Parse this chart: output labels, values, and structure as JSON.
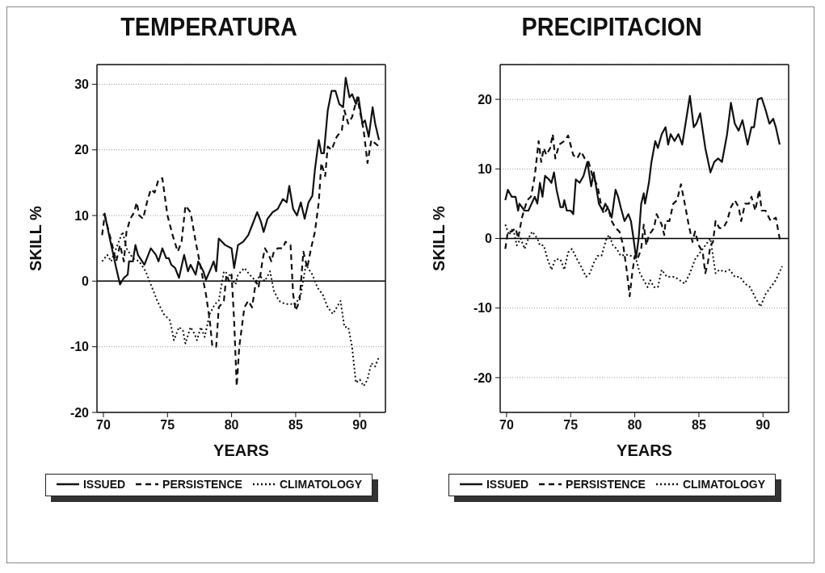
{
  "chart_data": [
    {
      "type": "line",
      "title": "TEMPERATURA",
      "xlabel": "YEARS",
      "ylabel": "SKILL %",
      "xlim": [
        69.5,
        92
      ],
      "xticks": [
        70,
        75,
        80,
        85,
        90
      ],
      "ylim": [
        -20,
        33
      ],
      "yticks": [
        -20,
        -10,
        0,
        10,
        20,
        30
      ],
      "grid": "y",
      "legend": "bottom",
      "ref_lines": [
        {
          "axis": "y",
          "value": 0,
          "color": "#000000",
          "line_style": "solid"
        }
      ],
      "series": [
        {
          "name": "ISSUED",
          "color": "#111111",
          "line_style": "solid",
          "x": [
            70.0,
            70.1,
            70.5,
            71.0,
            71.3,
            71.6,
            71.9,
            72.0,
            72.3,
            72.5,
            72.7,
            73.2,
            73.7,
            74.1,
            74.3,
            74.6,
            74.9,
            75.1,
            75.3,
            75.6,
            75.9,
            76.3,
            76.6,
            76.8,
            77.2,
            77.4,
            77.8,
            78.0,
            78.4,
            78.6,
            78.8,
            79.0,
            79.5,
            80.0,
            80.2,
            80.5,
            80.9,
            81.3,
            81.6,
            82.0,
            82.3,
            82.5,
            82.8,
            83.2,
            83.6,
            84.0,
            84.3,
            84.5,
            84.8,
            85.1,
            85.4,
            85.7,
            86.0,
            86.3,
            86.5,
            86.8,
            87.0,
            87.2,
            87.5,
            87.8,
            88.1,
            88.4,
            88.7,
            88.9,
            89.2,
            89.4,
            89.7,
            89.9,
            90.2,
            90.4,
            90.7,
            91.0,
            91.2,
            91.5
          ],
          "values": [
            10,
            10.3,
            6.5,
            2,
            -0.5,
            0.5,
            1,
            3,
            3,
            5.5,
            4,
            2.5,
            5,
            4,
            3,
            5,
            3.5,
            3.5,
            2.5,
            2,
            0.5,
            4,
            1.5,
            2.5,
            1,
            3,
            1.5,
            0.2,
            2,
            3,
            1.5,
            6.5,
            5.5,
            5,
            2,
            5.5,
            6,
            7,
            8.5,
            10.5,
            9,
            7.5,
            9.5,
            10.5,
            11,
            12.5,
            12,
            14.5,
            11,
            10,
            12,
            9.5,
            12,
            13,
            17,
            21.5,
            19.5,
            19.5,
            26,
            29,
            29,
            27,
            26.5,
            31,
            28,
            28.5,
            27,
            28,
            24,
            24.5,
            22,
            26.5,
            24,
            21.5
          ]
        },
        {
          "name": "PERSISTENCE",
          "color": "#111111",
          "line_style": "dashed",
          "x": [
            69.9,
            70.1,
            70.5,
            71.0,
            71.3,
            71.6,
            71.8,
            72.1,
            72.4,
            72.6,
            72.8,
            73.1,
            73.4,
            73.7,
            74.0,
            74.3,
            74.6,
            75.0,
            75.4,
            75.8,
            76.1,
            76.4,
            76.8,
            77.2,
            77.6,
            78.0,
            78.3,
            78.5,
            78.8,
            79.0,
            79.4,
            79.6,
            79.8,
            80.0,
            80.2,
            80.4,
            80.6,
            81.0,
            81.3,
            81.6,
            81.9,
            82.1,
            82.4,
            82.6,
            82.9,
            83.1,
            83.3,
            83.6,
            84.0,
            84.2,
            84.6,
            84.8,
            85.0,
            85.3,
            85.6,
            85.9,
            86.2,
            86.5,
            86.8,
            87.0,
            87.3,
            87.5,
            87.8,
            88.2,
            88.6,
            88.8,
            89.1,
            89.4,
            89.8,
            90.0,
            90.3,
            90.6,
            90.9,
            91.2,
            91.5
          ],
          "values": [
            7,
            10,
            7,
            3,
            5.5,
            3,
            7.5,
            9.5,
            10.5,
            12,
            10,
            9.5,
            12,
            14,
            13.5,
            15.5,
            15.7,
            10,
            7,
            4.5,
            6,
            11.5,
            10.5,
            6,
            2,
            -2,
            -6,
            -10,
            -10,
            -4,
            -3,
            1,
            0,
            1,
            -6,
            -16,
            -10,
            -4,
            -3,
            -4,
            0,
            -1,
            3,
            5,
            4,
            3,
            4.5,
            5,
            5,
            6,
            5.5,
            -2,
            -4.5,
            -3,
            4.5,
            2,
            5,
            7.5,
            12,
            18,
            16,
            20.5,
            20,
            22,
            23,
            26,
            24,
            25,
            28,
            26,
            23,
            18,
            21.5,
            21,
            20.5
          ]
        },
        {
          "name": "CLIMATOLOGY",
          "color": "#111111",
          "line_style": "dotted",
          "x": [
            69.9,
            70.3,
            70.6,
            71.0,
            71.5,
            71.8,
            72.3,
            72.8,
            73.3,
            73.8,
            74.2,
            74.7,
            75.2,
            75.5,
            75.9,
            76.2,
            76.4,
            76.8,
            77.1,
            77.3,
            77.6,
            77.9,
            78.3,
            78.7,
            79.0,
            79.4,
            79.8,
            80.3,
            80.5,
            81.0,
            81.4,
            81.9,
            82.2,
            82.6,
            83.0,
            83.3,
            83.7,
            84.2,
            84.6,
            85.0,
            85.4,
            85.8,
            86.3,
            86.7,
            87.1,
            87.5,
            87.9,
            88.2,
            88.5,
            88.8,
            89.1,
            89.4,
            89.7,
            90.0,
            90.3,
            90.6,
            90.9,
            91.2,
            91.5
          ],
          "values": [
            3,
            4,
            3,
            5,
            7.5,
            5,
            3.5,
            3,
            1.5,
            -1,
            -3,
            -5,
            -6,
            -9,
            -7,
            -7.5,
            -9.5,
            -7,
            -8,
            -9,
            -7,
            -8.5,
            -5,
            -3.5,
            -3,
            1.5,
            1,
            -0.5,
            1,
            2,
            1,
            0,
            0.8,
            0,
            1.5,
            -1.5,
            -3,
            -3.5,
            -3.5,
            -3.5,
            -2,
            2.5,
            1,
            -1,
            -2,
            -4,
            -5,
            -4,
            -3,
            -7,
            -7,
            -10,
            -15.5,
            -15,
            -16,
            -15,
            -12.5,
            -13,
            -11.5
          ]
        }
      ]
    },
    {
      "type": "line",
      "title": "PRECIPITACION",
      "xlabel": "YEARS",
      "ylabel": "SKILL %",
      "xlim": [
        69.5,
        92
      ],
      "xticks": [
        70,
        75,
        80,
        85,
        90
      ],
      "ylim": [
        -25,
        25
      ],
      "yticks": [
        -20,
        -10,
        0,
        10,
        20
      ],
      "grid": "y",
      "legend": "bottom",
      "ref_lines": [
        {
          "axis": "y",
          "value": 0,
          "color": "#000000",
          "line_style": "solid"
        }
      ],
      "series": [
        {
          "name": "ISSUED",
          "color": "#111111",
          "line_style": "solid",
          "x": [
            69.9,
            70.1,
            70.4,
            70.7,
            70.9,
            71.0,
            71.4,
            71.7,
            72.2,
            72.4,
            72.6,
            72.8,
            73.0,
            73.3,
            73.5,
            73.7,
            73.9,
            74.2,
            74.4,
            74.5,
            74.7,
            75.0,
            75.2,
            75.4,
            75.7,
            76.0,
            76.3,
            76.6,
            76.8,
            77.2,
            77.5,
            77.7,
            78.0,
            78.2,
            78.5,
            78.7,
            78.9,
            79.2,
            79.5,
            79.7,
            79.9,
            80.1,
            80.3,
            80.5,
            80.7,
            80.8,
            81.1,
            81.3,
            81.6,
            81.8,
            82.1,
            82.4,
            82.6,
            82.8,
            83.1,
            83.4,
            83.7,
            84.0,
            84.3,
            84.6,
            84.8,
            85.1,
            85.5,
            85.9,
            86.2,
            86.5,
            86.8,
            87.2,
            87.5,
            87.8,
            88.1,
            88.4,
            88.8,
            89.1,
            89.3,
            89.6,
            89.9,
            90.2,
            90.5,
            90.8,
            91.0,
            91.3
          ],
          "values": [
            5.5,
            7,
            6,
            6,
            4,
            5,
            4,
            4,
            6,
            5,
            8,
            6,
            9,
            8.5,
            8,
            9.5,
            7,
            4.5,
            4.5,
            5.5,
            4,
            4,
            3.5,
            8.5,
            8,
            9,
            11,
            7.5,
            9.5,
            5,
            4,
            5,
            4,
            3,
            7,
            6,
            4.5,
            2.5,
            3.5,
            2.5,
            0,
            -2.8,
            0,
            5,
            6.5,
            5,
            8,
            11,
            14,
            13,
            15,
            16,
            13.5,
            15,
            14,
            15,
            13.5,
            17,
            20.5,
            16,
            16.5,
            18,
            13,
            9.5,
            11,
            11.5,
            11,
            15,
            19.5,
            16.5,
            15.5,
            17,
            13.5,
            16,
            16,
            20,
            20.2,
            18.5,
            16.5,
            17.2,
            16,
            13.5
          ]
        },
        {
          "name": "PERSISTENCE",
          "color": "#111111",
          "line_style": "dashed",
          "x": [
            69.9,
            70.1,
            70.4,
            70.7,
            70.9,
            71.2,
            71.6,
            71.9,
            72.2,
            72.5,
            72.7,
            72.9,
            73.1,
            73.4,
            73.6,
            73.8,
            74.1,
            74.5,
            74.8,
            75.2,
            75.5,
            75.8,
            76.1,
            76.4,
            76.7,
            77.1,
            77.4,
            77.6,
            77.9,
            78.2,
            78.5,
            78.8,
            79.1,
            79.4,
            79.6,
            79.8,
            80.0,
            80.2,
            80.5,
            80.7,
            80.9,
            81.1,
            81.5,
            81.7,
            82.1,
            82.3,
            82.4,
            82.7,
            83.0,
            83.3,
            83.6,
            83.9,
            84.2,
            84.5,
            84.7,
            85.0,
            85.3,
            85.5,
            85.7,
            85.9,
            86.1,
            86.3,
            86.6,
            86.9,
            87.2,
            87.5,
            87.8,
            88.1,
            88.3,
            88.6,
            88.9,
            89.1,
            89.4,
            89.7,
            89.9,
            90.2,
            90.6,
            91.0,
            91.3,
            91.5
          ],
          "values": [
            -1.5,
            1,
            1,
            1.5,
            0,
            3,
            5.5,
            6,
            9,
            14,
            11,
            13,
            12,
            13,
            15,
            11.5,
            13.5,
            14,
            14.8,
            12,
            11.5,
            12.5,
            11.5,
            11,
            9,
            7.5,
            4.5,
            3.5,
            4.5,
            2.5,
            1.5,
            1,
            -1,
            -5,
            -8.3,
            -5,
            -2.5,
            -3,
            -1.5,
            2,
            -1,
            0.5,
            1.5,
            3.5,
            2,
            0.5,
            2.5,
            2.5,
            5,
            5.5,
            7.8,
            5,
            2,
            -0.5,
            1,
            -1,
            -2,
            -5,
            -3.5,
            -1,
            -0.5,
            2.5,
            1.5,
            1.5,
            2.5,
            4.5,
            5.5,
            4.5,
            2.5,
            5,
            5,
            6,
            4,
            7,
            4,
            4,
            2.5,
            3,
            0,
            0.5
          ]
        },
        {
          "name": "CLIMATOLOGY",
          "color": "#111111",
          "line_style": "dotted",
          "x": [
            69.9,
            70.2,
            70.5,
            70.8,
            71.1,
            71.4,
            71.7,
            72.0,
            72.4,
            72.6,
            72.9,
            73.2,
            73.5,
            73.8,
            74.2,
            74.5,
            74.8,
            75.1,
            75.5,
            75.8,
            76.2,
            76.5,
            76.8,
            77.1,
            77.4,
            77.8,
            78.0,
            78.3,
            78.6,
            78.9,
            79.3,
            79.7,
            80.1,
            80.4,
            80.7,
            81.0,
            81.2,
            81.5,
            81.8,
            82.1,
            82.5,
            82.8,
            83.1,
            83.5,
            83.9,
            84.3,
            84.7,
            85.1,
            85.5,
            85.9,
            86.1,
            86.3,
            86.6,
            87.0,
            87.4,
            87.8,
            88.2,
            88.6,
            89.0,
            89.4,
            89.8,
            90.2,
            90.6,
            91.0,
            91.5
          ],
          "values": [
            2,
            0.5,
            1.5,
            -1,
            0,
            -1.5,
            0,
            1,
            0,
            -1,
            -1,
            -3,
            -4.5,
            -3,
            -3,
            -4.5,
            -2,
            -1.5,
            -3,
            -4,
            -5.5,
            -5,
            -3.5,
            -2.5,
            -2.5,
            0,
            0.5,
            -1,
            -1.5,
            -2.5,
            -2.3,
            -2.5,
            -3,
            -5,
            -6,
            -7,
            -6,
            -7,
            -7,
            -4.5,
            -5.5,
            -5.5,
            -5.5,
            -6,
            -6.5,
            -5,
            -3,
            -2,
            -1,
            0,
            -2.5,
            -5,
            -4.5,
            -4.8,
            -4.5,
            -5.5,
            -5.5,
            -6.5,
            -7,
            -8.5,
            -9.8,
            -8,
            -7,
            -6,
            -4
          ]
        }
      ]
    }
  ]
}
